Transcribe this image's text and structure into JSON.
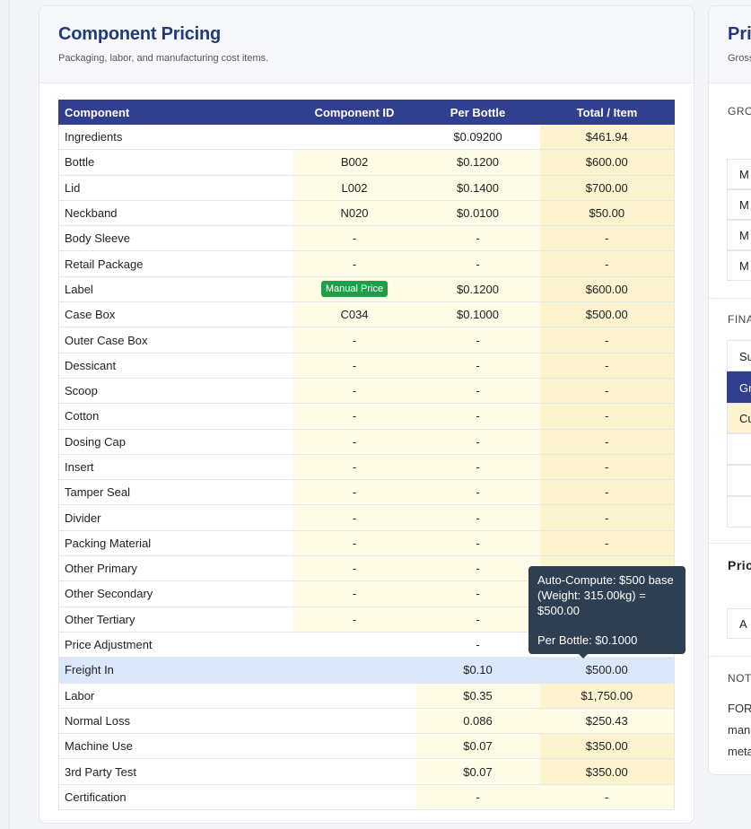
{
  "card": {
    "title": "Component Pricing",
    "subtitle": "Packaging, labor, and manufacturing cost items."
  },
  "table": {
    "headers": [
      "Component",
      "Component ID",
      "Per Bottle",
      "Total / Item"
    ],
    "rows": [
      {
        "name": "Ingredients",
        "id": "",
        "per": "$0.09200",
        "total": "$461.94"
      },
      {
        "name": "Bottle",
        "id": "B002",
        "per": "$0.1200",
        "total": "$600.00"
      },
      {
        "name": "Lid",
        "id": "L002",
        "per": "$0.1400",
        "total": "$700.00"
      },
      {
        "name": "Neckband",
        "id": "N020",
        "per": "$0.0100",
        "total": "$50.00"
      },
      {
        "name": "Body Sleeve",
        "id": "-",
        "per": "-",
        "total": "-"
      },
      {
        "name": "Retail Package",
        "id": "-",
        "per": "-",
        "total": "-"
      },
      {
        "name": "Label",
        "id": "Manual Price",
        "per": "$0.1200",
        "total": "$600.00"
      },
      {
        "name": "Case Box",
        "id": "C034",
        "per": "$0.1000",
        "total": "$500.00"
      },
      {
        "name": "Outer Case Box",
        "id": "-",
        "per": "-",
        "total": "-"
      },
      {
        "name": "Dessicant",
        "id": "-",
        "per": "-",
        "total": "-"
      },
      {
        "name": "Scoop",
        "id": "-",
        "per": "-",
        "total": "-"
      },
      {
        "name": "Cotton",
        "id": "-",
        "per": "-",
        "total": "-"
      },
      {
        "name": "Dosing Cap",
        "id": "-",
        "per": "-",
        "total": "-"
      },
      {
        "name": "Insert",
        "id": "-",
        "per": "-",
        "total": "-"
      },
      {
        "name": "Tamper Seal",
        "id": "-",
        "per": "-",
        "total": "-"
      },
      {
        "name": "Divider",
        "id": "-",
        "per": "-",
        "total": "-"
      },
      {
        "name": "Packing Material",
        "id": "-",
        "per": "-",
        "total": "-"
      },
      {
        "name": "Other Primary",
        "id": "-",
        "per": "-",
        "total": ""
      },
      {
        "name": "Other Secondary",
        "id": "-",
        "per": "-",
        "total": ""
      },
      {
        "name": "Other Tertiary",
        "id": "-",
        "per": "-",
        "total": ""
      },
      {
        "name": "Price Adjustment",
        "id": "",
        "per": "-",
        "total": ""
      },
      {
        "name": "Freight In",
        "id": "",
        "per": "$0.10",
        "total": "$500.00"
      },
      {
        "name": "Labor",
        "id": "",
        "per": "$0.35",
        "total": "$1,750.00"
      },
      {
        "name": "Normal Loss",
        "id": "",
        "per": "0.086",
        "total": "$250.43"
      },
      {
        "name": "Machine Use",
        "id": "",
        "per": "$0.07",
        "total": "$350.00"
      },
      {
        "name": "3rd Party Test",
        "id": "",
        "per": "$0.07",
        "total": "$350.00"
      },
      {
        "name": "Certification",
        "id": "",
        "per": "-",
        "total": "-"
      }
    ]
  },
  "tooltip": {
    "line1": "Auto-Compute: $500 base (Weight: 315.00kg) = $500.00",
    "line2": "Per Bottle: $0.1000"
  },
  "right_card": {
    "title": "Pri",
    "subtitle": "Gross",
    "section1": "GRO",
    "items1": [
      "M",
      "M",
      "M",
      "M"
    ],
    "section2": "FINA",
    "items2": [
      "Su",
      "Gr",
      "Cu"
    ],
    "section3": "Pric",
    "item3": "A",
    "section4": "NOT",
    "notes": [
      "FOR",
      "man",
      "meta"
    ]
  },
  "colors": {
    "header_bg": "#323e8e",
    "title_color": "#223a7a",
    "badge_green": "#1f9e4a",
    "highlight_blue": "#dbe8fb",
    "tooltip_bg": "#2f3f52"
  }
}
